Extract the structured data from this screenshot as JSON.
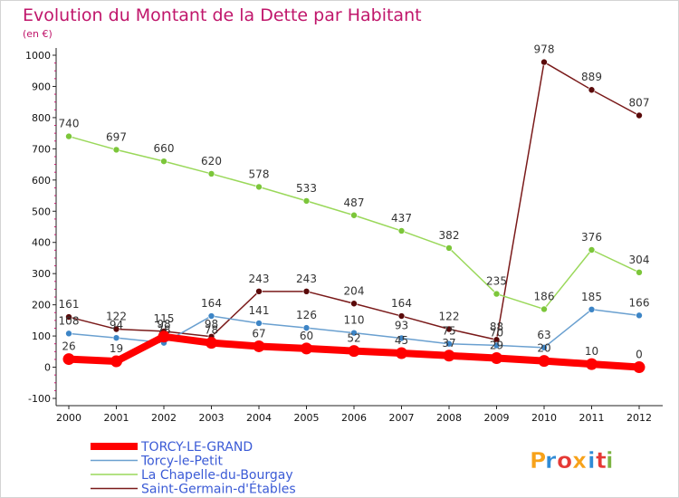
{
  "chart_data": {
    "type": "line",
    "title": "Evolution du Montant de la Dette par Habitant",
    "unit_label": "(en €)",
    "x": [
      "2000",
      "2001",
      "2002",
      "2003",
      "2004",
      "2005",
      "2006",
      "2007",
      "2008",
      "2009",
      "2010",
      "2011",
      "2012"
    ],
    "ylim": [
      -100,
      1000
    ],
    "yticks": [
      "-100",
      "0",
      "100",
      "200",
      "300",
      "400",
      "500",
      "600",
      "700",
      "800",
      "900",
      "1000"
    ],
    "grid": false,
    "legend_position": "bottom-left",
    "series": [
      {
        "name": "Saint-Germain-d'Étables",
        "color": "#7a1a1a",
        "marker": "#5a0a0a",
        "values": [
          161,
          122,
          115,
          98,
          243,
          243,
          204,
          164,
          122,
          88,
          978,
          889,
          807
        ],
        "labels": [
          "161",
          "122",
          "115",
          "98",
          "243",
          "243",
          "204",
          "164",
          "122",
          "88",
          "978",
          "889",
          "807"
        ]
      },
      {
        "name": "La Chapelle-du-Bourgay",
        "color": "#9ad85a",
        "marker": "#7cc63a",
        "values": [
          740,
          697,
          660,
          620,
          578,
          533,
          487,
          437,
          382,
          235,
          186,
          376,
          304
        ],
        "labels": [
          "740",
          "697",
          "660",
          "620",
          "578",
          "533",
          "487",
          "437",
          "382",
          "235",
          "186",
          "376",
          "304"
        ]
      },
      {
        "name": "Torcy-le-Petit",
        "color": "#6aa0d0",
        "marker": "#3d85c6",
        "values": [
          108,
          94,
          78,
          164,
          141,
          126,
          110,
          93,
          75,
          70,
          63,
          185,
          166
        ],
        "labels": [
          "108",
          "94",
          "78",
          "164",
          "141",
          "126",
          "110",
          "93",
          "75",
          "70",
          "63",
          "185",
          "166"
        ]
      },
      {
        "name": "TORCY-LE-GRAND",
        "color": "#ff0000",
        "marker": "#ff0000",
        "thick": true,
        "values": [
          26,
          19,
          98,
          78,
          67,
          60,
          52,
          45,
          37,
          29,
          20,
          10,
          0
        ],
        "labels": [
          "26",
          "19",
          "98",
          "78",
          "67",
          "60",
          "52",
          "45",
          "37",
          "29",
          "20",
          "10",
          "0"
        ]
      }
    ],
    "legend": [
      {
        "label": "TORCY-LE-GRAND",
        "color": "#ff0000",
        "thick": true
      },
      {
        "label": "Torcy-le-Petit",
        "color": "#6aa0d0"
      },
      {
        "label": "La Chapelle-du-Bourgay",
        "color": "#9ad85a"
      },
      {
        "label": "Saint-Germain-d'Étables",
        "color": "#7a1a1a"
      }
    ]
  },
  "brand": {
    "letters": [
      "P",
      "r",
      "o",
      "x",
      "i",
      "t",
      "i"
    ],
    "colors": [
      "#f7a21a",
      "#2f8bd6",
      "#e53935",
      "#f7a21a",
      "#2f8bd6",
      "#e53935",
      "#7cb342"
    ]
  },
  "colors": {
    "title": "#c0166b",
    "legend_text": "#3b5bd6",
    "axis": "#222222",
    "accent_ticks": "#c0166b"
  }
}
